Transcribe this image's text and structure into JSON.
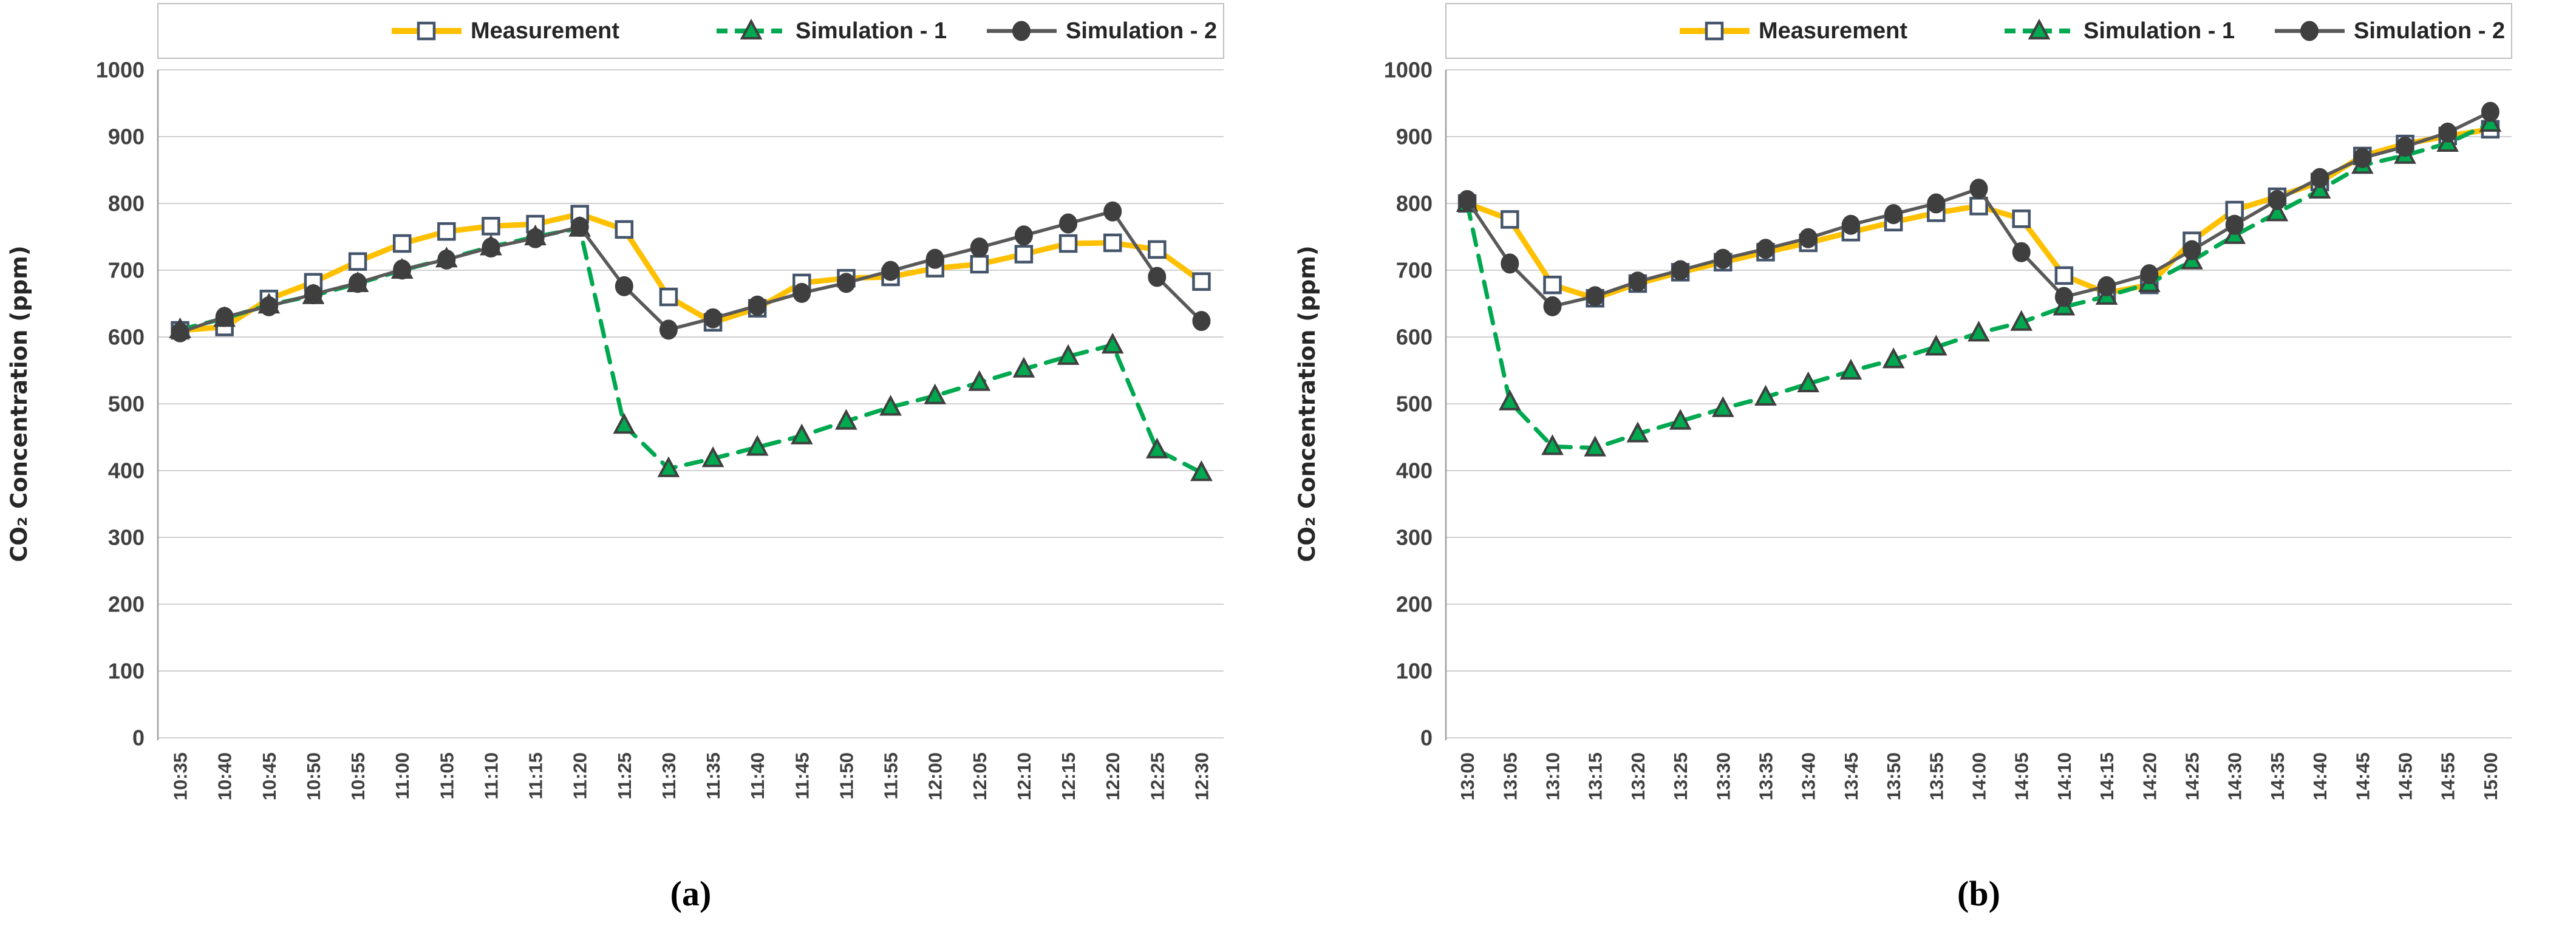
{
  "figure": {
    "background": "#ffffff",
    "panel_captions": [
      "(a)",
      "(b)"
    ]
  },
  "style": {
    "grid_color": "#c9c9c9",
    "axis_line_color": "#9e9e9e",
    "legend_border_color": "#bfbfbf",
    "tick_text_color": "#404040",
    "legend_text_color": "#262626",
    "measurement_color": "#FFC000",
    "simulation1_color": "#00A850",
    "simulation2_color": "#595959",
    "square_marker_stroke": "#44546A",
    "dark_marker_color": "#3F3F3F"
  },
  "chart_data": [
    {
      "id": "a",
      "type": "line",
      "caption": "(a)",
      "ylabel": "CO₂ Concentration (ppm)",
      "xlabel": "",
      "ylim": [
        0,
        1000
      ],
      "y_ticks": [
        0,
        100,
        200,
        300,
        400,
        500,
        600,
        700,
        800,
        900,
        1000
      ],
      "grid": true,
      "legend_position": "top",
      "categories": [
        "10:35",
        "10:40",
        "10:45",
        "10:50",
        "10:55",
        "11:00",
        "11:05",
        "11:10",
        "11:15",
        "11:20",
        "11:25",
        "11:30",
        "11:35",
        "11:40",
        "11:45",
        "11:50",
        "11:55",
        "12:00",
        "12:05",
        "12:10",
        "12:15",
        "12:20",
        "12:25",
        "12:30"
      ],
      "series": [
        {
          "name": "Measurement",
          "line": "solid",
          "marker": "square-open",
          "values": [
            610,
            615,
            657,
            682,
            713,
            740,
            758,
            766,
            769,
            784,
            761,
            660,
            622,
            643,
            681,
            688,
            690,
            703,
            709,
            724,
            740,
            741,
            731,
            683
          ]
        },
        {
          "name": "Simulation - 1",
          "line": "dashed",
          "marker": "triangle",
          "values": [
            611,
            628,
            648,
            662,
            680,
            700,
            717,
            735,
            750,
            763,
            468,
            403,
            418,
            435,
            452,
            474,
            495,
            512,
            532,
            552,
            571,
            588,
            431,
            397
          ]
        },
        {
          "name": "Simulation - 2",
          "line": "solid",
          "marker": "circle",
          "values": [
            607,
            630,
            646,
            664,
            681,
            701,
            716,
            734,
            748,
            765,
            676,
            611,
            628,
            647,
            666,
            681,
            699,
            717,
            734,
            752,
            770,
            788,
            690,
            624
          ]
        }
      ]
    },
    {
      "id": "b",
      "type": "line",
      "caption": "(b)",
      "ylabel": "CO₂ Concentration (ppm)",
      "xlabel": "",
      "ylim": [
        0,
        1000
      ],
      "y_ticks": [
        0,
        100,
        200,
        300,
        400,
        500,
        600,
        700,
        800,
        900,
        1000
      ],
      "grid": true,
      "legend_position": "top",
      "categories": [
        "13:00",
        "13:05",
        "13:10",
        "13:15",
        "13:20",
        "13:25",
        "13:30",
        "13:35",
        "13:40",
        "13:45",
        "13:50",
        "13:55",
        "14:00",
        "14:05",
        "14:10",
        "14:15",
        "14:20",
        "14:25",
        "14:30",
        "14:35",
        "14:40",
        "14:45",
        "14:50",
        "14:55",
        "15:00"
      ],
      "series": [
        {
          "name": "Measurement",
          "line": "solid",
          "marker": "square-open",
          "values": [
            800,
            776,
            678,
            658,
            680,
            697,
            712,
            727,
            741,
            757,
            772,
            786,
            796,
            777,
            692,
            666,
            678,
            744,
            790,
            810,
            832,
            871,
            889,
            901,
            911
          ]
        },
        {
          "name": "Simulation - 1",
          "line": "dashed",
          "marker": "triangle",
          "values": [
            800,
            503,
            436,
            434,
            455,
            474,
            493,
            510,
            530,
            549,
            566,
            585,
            606,
            622,
            645,
            661,
            680,
            714,
            752,
            786,
            820,
            857,
            872,
            890,
            920
          ]
        },
        {
          "name": "Simulation - 2",
          "line": "solid",
          "marker": "circle",
          "values": [
            805,
            710,
            646,
            661,
            683,
            700,
            717,
            732,
            748,
            768,
            784,
            800,
            822,
            727,
            660,
            676,
            694,
            730,
            768,
            805,
            838,
            868,
            885,
            906,
            937
          ]
        }
      ]
    }
  ]
}
